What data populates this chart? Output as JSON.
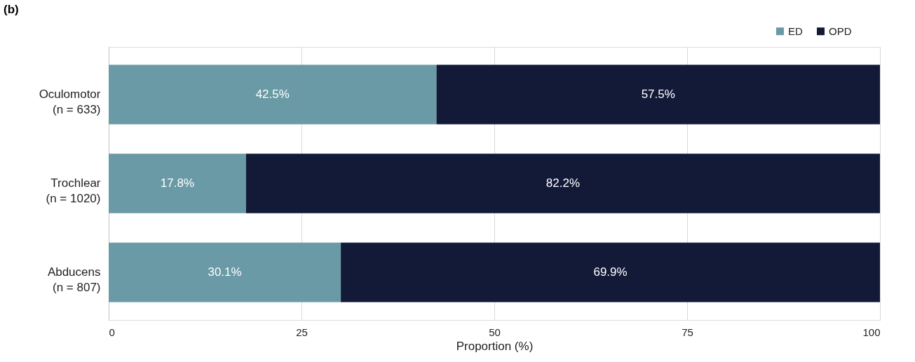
{
  "chart_data": {
    "type": "bar",
    "orientation": "horizontal",
    "stacked": true,
    "title": "(b)",
    "categories": [
      "Oculomotor\n(n = 633)",
      "Trochlear\n(n = 1020)",
      "Abducens\n(n = 807)"
    ],
    "series": [
      {
        "name": "ED",
        "color": "#6a9aa5",
        "values": [
          42.5,
          17.8,
          30.1
        ],
        "value_labels": [
          "42.5%",
          "17.8%",
          "30.1%"
        ]
      },
      {
        "name": "OPD",
        "color": "#131a38",
        "values": [
          57.5,
          82.2,
          69.9
        ],
        "value_labels": [
          "57.5%",
          "82.2%",
          "69.9%"
        ]
      }
    ],
    "xlabel": "Proportion (%)",
    "xlim": [
      0,
      100
    ],
    "xticks": [
      0,
      25,
      50,
      75,
      100
    ],
    "grid": "x",
    "legend": "top right"
  }
}
